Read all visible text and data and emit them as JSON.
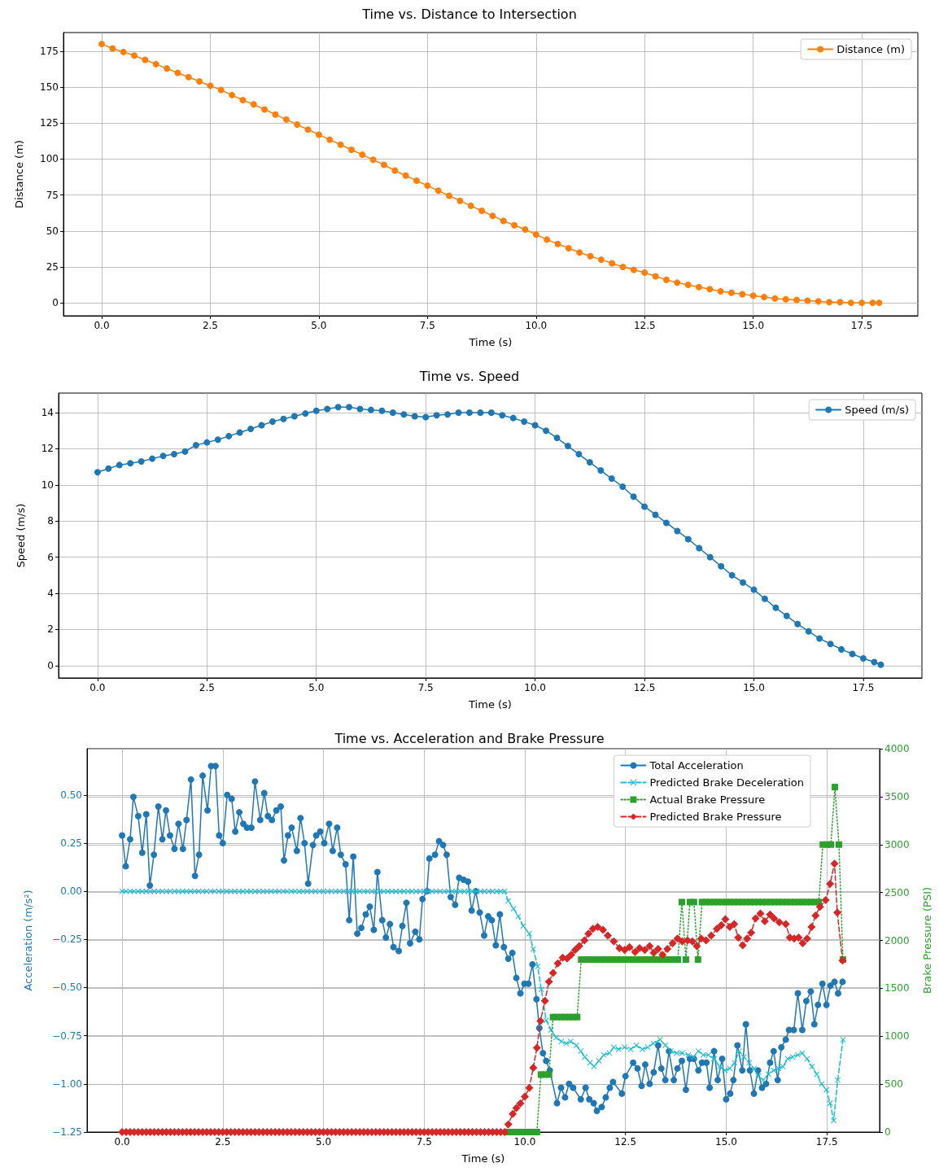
{
  "chart_data": [
    {
      "type": "line",
      "title": "Time vs. Distance to Intersection",
      "xlabel": "Time (s)",
      "ylabel": "Distance (m)",
      "marker": "circle",
      "line_style": "solid",
      "grid": true,
      "legend": "top right",
      "xlim": [
        -0.88,
        18.79
      ],
      "ylim": [
        -9,
        188
      ],
      "xticks": [
        {
          "value": 0,
          "label": "0.0"
        },
        2.5,
        {
          "value": 5,
          "label": "5.0"
        },
        7.5,
        {
          "value": 10,
          "label": "10.0"
        },
        12.5,
        {
          "value": 15,
          "label": "15.0"
        },
        17.5
      ],
      "yticks": [
        0,
        25,
        50,
        75,
        100,
        125,
        150,
        175
      ],
      "series": [
        {
          "name": "Distance (m)",
          "color": "#ff7f0e",
          "x": [
            0,
            0.25,
            0.5,
            0.75,
            1,
            1.25,
            1.5,
            1.75,
            2,
            2.25,
            2.5,
            2.75,
            3,
            3.25,
            3.5,
            3.75,
            4,
            4.25,
            4.5,
            4.75,
            5,
            5.25,
            5.5,
            5.75,
            6,
            6.25,
            6.5,
            6.75,
            7,
            7.25,
            7.5,
            7.75,
            8,
            8.25,
            8.5,
            8.75,
            9,
            9.25,
            9.5,
            9.75,
            10,
            10.25,
            10.5,
            10.75,
            11,
            11.25,
            11.5,
            11.75,
            12,
            12.25,
            12.5,
            12.75,
            13,
            13.25,
            13.5,
            13.75,
            14,
            14.25,
            14.5,
            14.75,
            15,
            15.25,
            15.5,
            15.75,
            16,
            16.25,
            16.5,
            16.75,
            17,
            17.25,
            17.5,
            17.75,
            17.9
          ],
          "values": [
            180,
            177,
            174.5,
            172,
            169,
            166,
            163,
            160,
            157,
            154,
            151,
            148,
            144.5,
            141,
            138,
            134.5,
            131,
            127.5,
            124,
            120.5,
            117,
            113.5,
            110,
            106.5,
            103,
            99.5,
            96,
            92,
            88.5,
            85,
            81.5,
            78,
            74.5,
            71,
            67.5,
            64,
            60.5,
            57,
            54,
            51,
            47.5,
            44,
            41,
            38,
            35,
            32.5,
            30,
            27.5,
            25,
            23,
            21,
            18.5,
            16,
            14,
            12.5,
            11,
            9.5,
            8,
            7,
            6,
            5,
            4,
            3,
            2.5,
            2,
            1.5,
            1,
            0.5,
            0.5,
            0,
            0,
            0,
            0
          ]
        }
      ]
    },
    {
      "type": "line",
      "title": "Time vs. Speed",
      "xlabel": "Time (s)",
      "ylabel": "Speed (m/s)",
      "marker": "circle",
      "line_style": "solid",
      "grid": true,
      "legend": "top right",
      "xlim": [
        -0.89,
        18.84
      ],
      "ylim": [
        -0.68,
        15.08
      ],
      "xticks": [
        {
          "value": 0,
          "label": "0.0"
        },
        2.5,
        {
          "value": 5,
          "label": "5.0"
        },
        7.5,
        {
          "value": 10,
          "label": "10.0"
        },
        12.5,
        {
          "value": 15,
          "label": "15.0"
        },
        17.5
      ],
      "yticks": [
        0,
        2,
        4,
        6,
        8,
        10,
        12,
        14
      ],
      "series": [
        {
          "name": "Speed (m/s)",
          "color": "#1f77b4",
          "x": [
            0,
            0.25,
            0.5,
            0.75,
            1,
            1.25,
            1.5,
            1.75,
            2,
            2.25,
            2.5,
            2.75,
            3,
            3.25,
            3.5,
            3.75,
            4,
            4.25,
            4.5,
            4.75,
            5,
            5.25,
            5.5,
            5.75,
            6,
            6.25,
            6.5,
            6.75,
            7,
            7.25,
            7.5,
            7.75,
            8,
            8.25,
            8.5,
            8.75,
            9,
            9.25,
            9.5,
            9.75,
            10,
            10.25,
            10.5,
            10.75,
            11,
            11.25,
            11.5,
            11.75,
            12,
            12.25,
            12.5,
            12.75,
            13,
            13.25,
            13.5,
            13.75,
            14,
            14.25,
            14.5,
            14.75,
            15,
            15.25,
            15.5,
            15.75,
            16,
            16.25,
            16.5,
            16.75,
            17,
            17.25,
            17.5,
            17.75,
            17.9
          ],
          "values": [
            10.7,
            10.9,
            11.1,
            11.2,
            11.3,
            11.45,
            11.6,
            11.7,
            11.85,
            12.2,
            12.35,
            12.5,
            12.7,
            12.9,
            13.1,
            13.3,
            13.5,
            13.65,
            13.8,
            13.95,
            14.1,
            14.2,
            14.3,
            14.3,
            14.2,
            14.15,
            14.1,
            14.0,
            13.9,
            13.8,
            13.75,
            13.85,
            13.9,
            14.0,
            14.0,
            14.0,
            14.0,
            13.85,
            13.7,
            13.5,
            13.3,
            13.0,
            12.6,
            12.15,
            11.7,
            11.25,
            10.8,
            10.35,
            9.9,
            9.35,
            8.8,
            8.35,
            7.9,
            7.45,
            7.0,
            6.5,
            6.0,
            5.5,
            5.0,
            4.6,
            4.2,
            3.7,
            3.2,
            2.75,
            2.3,
            1.9,
            1.5,
            1.2,
            0.9,
            0.65,
            0.4,
            0.2,
            0.05
          ]
        }
      ]
    },
    {
      "type": "line",
      "title": "Time vs. Acceleration and Brake Pressure",
      "xlabel": "Time (s)",
      "ylabel": "Acceleration (m/s²)",
      "y2label": "Brake Pressure (PSI)",
      "grid": true,
      "legend": "top right",
      "xlim": [
        -0.87,
        18.81
      ],
      "ylim": [
        -1.25,
        0.74
      ],
      "y2lim": [
        0,
        4000
      ],
      "xticks": [
        {
          "value": 0,
          "label": "0.0"
        },
        2.5,
        {
          "value": 5,
          "label": "5.0"
        },
        7.5,
        {
          "value": 10,
          "label": "10.0"
        },
        12.5,
        {
          "value": 15,
          "label": "15.0"
        },
        17.5
      ],
      "yticks": [
        {
          "value": -1.25,
          "label": "−1.25"
        },
        {
          "value": -1,
          "label": "−1.00"
        },
        {
          "value": -0.75,
          "label": "−0.75"
        },
        {
          "value": -0.5,
          "label": "−0.50"
        },
        {
          "value": -0.25,
          "label": "−0.25"
        },
        {
          "value": 0,
          "label": "0.00"
        },
        0.25,
        {
          "value": 0.5,
          "label": "0.50"
        }
      ],
      "y2ticks": [
        0,
        500,
        1000,
        1500,
        2000,
        2500,
        3000,
        3500,
        4000
      ],
      "series": [
        {
          "name": "Total Acceleration",
          "color": "#1f77b4",
          "marker": "circle",
          "line_style": "solid",
          "x": [
            0,
            0.09,
            0.2,
            0.28,
            0.4,
            0.5,
            0.6,
            0.69,
            0.79,
            0.9,
            1.0,
            1.09,
            1.19,
            1.3,
            1.4,
            1.51,
            1.6,
            1.71,
            1.81,
            1.91,
            2.0,
            2.12,
            2.21,
            2.32,
            2.41,
            2.5,
            2.61,
            2.72,
            2.81,
            2.91,
            3.01,
            3.1,
            3.21,
            3.3,
            3.43,
            3.53,
            3.62,
            3.72,
            3.83,
            3.94,
            4.02,
            4.12,
            4.21,
            4.34,
            4.43,
            4.53,
            4.62,
            4.74,
            4.82,
            4.92,
            5.02,
            5.14,
            5.23,
            5.34,
            5.43,
            5.55,
            5.64,
            5.74,
            5.84,
            5.94,
            6.05,
            6.15,
            6.25,
            6.34,
            6.46,
            6.55,
            6.65,
            6.74,
            6.87,
            6.96,
            7.06,
            7.15,
            7.28,
            7.38,
            7.46,
            7.57,
            7.63,
            7.77,
            7.87,
            7.97,
            8.06,
            8.16,
            8.27,
            8.37,
            8.48,
            8.59,
            8.68,
            8.78,
            8.88,
            8.99,
            9.09,
            9.18,
            9.28,
            9.38,
            9.48,
            9.59,
            9.69,
            9.79,
            9.89,
            9.99,
            10.09,
            10.19,
            10.29,
            10.36,
            10.45,
            10.53,
            10.62,
            10.8,
            10.9,
            11.0,
            11.1,
            11.2,
            11.39,
            11.51,
            11.6,
            11.71,
            11.79,
            11.91,
            12.01,
            12.11,
            12.19,
            12.41,
            12.5,
            12.69,
            12.8,
            12.9,
            12.99,
            13.1,
            13.2,
            13.31,
            13.39,
            13.49,
            13.58,
            13.7,
            13.79,
            13.9,
            14.0,
            14.1,
            14.2,
            14.31,
            14.4,
            14.51,
            14.59,
            14.7,
            14.79,
            14.9,
            15.0,
            15.1,
            15.18,
            15.28,
            15.4,
            15.49,
            15.59,
            15.69,
            15.79,
            15.89,
            15.99,
            16.09,
            16.18,
            16.28,
            16.37,
            16.48,
            16.56,
            16.68,
            16.78,
            16.89,
            16.99,
            17.1,
            17.19,
            17.28,
            17.39,
            17.49,
            17.59,
            17.69,
            17.78,
            17.89
          ],
          "values": [
            0.29,
            0.13,
            0.27,
            0.49,
            0.39,
            0.2,
            0.4,
            0.03,
            0.19,
            0.44,
            0.27,
            0.42,
            0.29,
            0.22,
            0.35,
            0.22,
            0.37,
            0.58,
            0.08,
            0.19,
            0.6,
            0.42,
            0.65,
            0.65,
            0.29,
            0.25,
            0.5,
            0.48,
            0.31,
            0.41,
            0.35,
            0.33,
            0.33,
            0.57,
            0.37,
            0.51,
            0.39,
            0.37,
            0.42,
            0.44,
            0.16,
            0.29,
            0.33,
            0.21,
            0.38,
            0.25,
            0.04,
            0.24,
            0.29,
            0.31,
            0.25,
            0.35,
            0.21,
            0.33,
            0.19,
            0.14,
            -0.15,
            0.18,
            -0.22,
            -0.19,
            -0.12,
            -0.08,
            -0.2,
            0.1,
            -0.15,
            -0.24,
            -0.17,
            -0.29,
            -0.31,
            -0.18,
            -0.06,
            -0.27,
            -0.21,
            -0.25,
            -0.04,
            0.0,
            0.17,
            0.19,
            0.26,
            0.24,
            0.19,
            -0.03,
            -0.07,
            0.07,
            0.06,
            0.05,
            -0.1,
            0.0,
            -0.11,
            -0.23,
            -0.13,
            -0.15,
            -0.28,
            -0.12,
            -0.29,
            -0.35,
            -0.32,
            -0.45,
            -0.53,
            -0.48,
            -0.48,
            -0.38,
            -0.56,
            -0.71,
            -0.84,
            -0.88,
            -0.93,
            -1.1,
            -1.02,
            -1.07,
            -1.0,
            -1.02,
            -1.08,
            -1.02,
            -1.08,
            -1.1,
            -1.14,
            -1.12,
            -1.07,
            -1.02,
            -0.99,
            -1.05,
            -0.96,
            -0.89,
            -0.92,
            -1.01,
            -0.9,
            -1.0,
            -0.94,
            -0.8,
            -0.92,
            -0.98,
            -0.83,
            -0.98,
            -0.92,
            -0.88,
            -1.03,
            -0.87,
            -0.87,
            -0.93,
            -0.89,
            -0.89,
            -1.02,
            -0.83,
            -0.98,
            -0.87,
            -1.08,
            -1.05,
            -0.98,
            -0.8,
            -0.93,
            -0.69,
            -0.93,
            -1.05,
            -0.93,
            -1.02,
            -1.0,
            -0.89,
            -0.83,
            -0.98,
            -0.81,
            -0.77,
            -0.72,
            -0.72,
            -0.53,
            -0.72,
            -0.57,
            -0.52,
            -0.69,
            -0.59,
            -0.48,
            -0.59,
            -0.49,
            -0.47,
            -0.53,
            -0.47
          ]
        },
        {
          "name": "Predicted Brake Deceleration",
          "color": "#17becf",
          "marker": "cross",
          "line_style": "dashed",
          "x": [
            0,
            0.1,
            0.2,
            0.3,
            0.4,
            0.5,
            0.6,
            0.7,
            0.8,
            0.9,
            1,
            1.1,
            1.2,
            1.3,
            1.4,
            1.5,
            1.6,
            1.7,
            1.8,
            1.9,
            2,
            2.1,
            2.2,
            2.3,
            2.4,
            2.5,
            2.6,
            2.7,
            2.8,
            2.9,
            3,
            3.1,
            3.2,
            3.3,
            3.4,
            3.5,
            3.6,
            3.7,
            3.8,
            3.9,
            4,
            4.1,
            4.2,
            4.3,
            4.4,
            4.5,
            4.6,
            4.7,
            4.8,
            4.9,
            5,
            5.1,
            5.2,
            5.3,
            5.4,
            5.5,
            5.6,
            5.7,
            5.8,
            5.9,
            6,
            6.1,
            6.2,
            6.3,
            6.4,
            6.5,
            6.6,
            6.7,
            6.8,
            6.9,
            7,
            7.1,
            7.2,
            7.3,
            7.4,
            7.5,
            7.6,
            7.7,
            7.8,
            7.9,
            8,
            8.1,
            8.2,
            8.3,
            8.4,
            8.5,
            8.6,
            8.7,
            8.8,
            8.9,
            9,
            9.1,
            9.2,
            9.3,
            9.4,
            9.5,
            9.59,
            9.72,
            9.84,
            9.96,
            10.11,
            10.21,
            10.32,
            10.41,
            10.53,
            10.65,
            10.78,
            10.91,
            11.03,
            11.14,
            11.28,
            11.39,
            11.49,
            11.62,
            11.72,
            11.84,
            11.96,
            12.1,
            12.21,
            12.33,
            12.48,
            12.63,
            12.77,
            12.92,
            13.05,
            13.19,
            13.36,
            13.49,
            13.63,
            13.77,
            13.91,
            14.06,
            14.19,
            14.31,
            14.43,
            14.56,
            14.7,
            14.84,
            14.97,
            15.09,
            15.21,
            15.32,
            15.44,
            15.57,
            15.69,
            15.8,
            15.92,
            16.05,
            16.18,
            16.3,
            16.41,
            16.53,
            16.65,
            16.78,
            16.89,
            17.01,
            17.13,
            17.25,
            17.37,
            17.49,
            17.58,
            17.67,
            17.77,
            17.9
          ],
          "values": [
            0,
            0,
            0,
            0,
            0,
            0,
            0,
            0,
            0,
            0,
            0,
            0,
            0,
            0,
            0,
            0,
            0,
            0,
            0,
            0,
            0,
            0,
            0,
            0,
            0,
            0,
            0,
            0,
            0,
            0,
            0,
            0,
            0,
            0,
            0,
            0,
            0,
            0,
            0,
            0,
            0,
            0,
            0,
            0,
            0,
            0,
            0,
            0,
            0,
            0,
            0,
            0,
            0,
            0,
            0,
            0,
            0,
            0,
            0,
            0,
            0,
            0,
            0,
            0,
            0,
            0,
            0,
            0,
            0,
            0,
            0,
            0,
            0,
            0,
            0,
            0,
            0,
            0,
            0,
            0,
            0,
            0,
            0,
            0,
            0,
            0,
            0,
            0,
            0,
            0,
            0,
            0,
            0,
            0,
            0,
            0,
            -0.05,
            -0.09,
            -0.13,
            -0.18,
            -0.22,
            -0.3,
            -0.39,
            -0.51,
            -0.67,
            -0.72,
            -0.76,
            -0.78,
            -0.79,
            -0.78,
            -0.8,
            -0.83,
            -0.86,
            -0.89,
            -0.91,
            -0.88,
            -0.85,
            -0.84,
            -0.81,
            -0.82,
            -0.81,
            -0.82,
            -0.8,
            -0.82,
            -0.81,
            -0.79,
            -0.77,
            -0.8,
            -0.83,
            -0.84,
            -0.84,
            -0.85,
            -0.86,
            -0.83,
            -0.85,
            -0.85,
            -0.87,
            -0.91,
            -0.93,
            -0.92,
            -0.89,
            -0.83,
            -0.86,
            -0.89,
            -0.92,
            -0.96,
            -0.98,
            -0.95,
            -0.93,
            -0.92,
            -0.91,
            -0.87,
            -0.86,
            -0.85,
            -0.84,
            -0.87,
            -0.91,
            -0.95,
            -1.0,
            -1.03,
            -1.1,
            -1.19,
            -0.98,
            -0.77
          ]
        },
        {
          "name": "Actual Brake Pressure",
          "color": "#2ca02c",
          "marker": "square",
          "line_style": "dotted",
          "axis": "y2",
          "x": [
            9.6,
            9.7,
            9.8,
            9.9,
            10,
            10.1,
            10.2,
            10.3,
            10.4,
            10.5,
            10.6,
            10.7,
            10.8,
            10.9,
            11,
            11.1,
            11.2,
            11.3,
            11.4,
            11.5,
            11.6,
            11.7,
            11.8,
            11.9,
            12,
            12.1,
            12.2,
            12.3,
            12.4,
            12.5,
            12.6,
            12.7,
            12.8,
            12.9,
            13,
            13.1,
            13.2,
            13.3,
            13.4,
            13.5,
            13.6,
            13.7,
            13.8,
            13.9,
            14,
            14.1,
            14.2,
            14.3,
            14.4,
            14.5,
            14.6,
            14.7,
            14.8,
            14.9,
            15,
            15.1,
            15.2,
            15.3,
            15.4,
            15.5,
            15.6,
            15.7,
            15.8,
            15.9,
            16,
            16.1,
            16.2,
            16.3,
            16.4,
            16.5,
            16.6,
            16.7,
            16.8,
            16.9,
            17,
            17.1,
            17.2,
            17.3,
            17.4,
            17.5,
            17.6,
            17.7,
            17.8,
            17.9
          ],
          "values": [
            0,
            0,
            0,
            0,
            0,
            0,
            0,
            0,
            600,
            600,
            600,
            1200,
            1200,
            1200,
            1200,
            1200,
            1200,
            1200,
            1800,
            1800,
            1800,
            1800,
            1800,
            1800,
            1800,
            1800,
            1800,
            1800,
            1800,
            1800,
            1800,
            1800,
            1800,
            1800,
            1800,
            1800,
            1800,
            1800,
            1800,
            1800,
            1800,
            1800,
            1800,
            2400,
            1800,
            2400,
            2400,
            1800,
            2400,
            2400,
            2400,
            2400,
            2400,
            2400,
            2400,
            2400,
            2400,
            2400,
            2400,
            2400,
            2400,
            2400,
            2400,
            2400,
            2400,
            2400,
            2400,
            2400,
            2400,
            2400,
            2400,
            2400,
            2400,
            2400,
            2400,
            2400,
            2400,
            2400,
            3000,
            3000,
            3000,
            3600,
            3000,
            1800
          ]
        },
        {
          "name": "Predicted Brake Pressure",
          "color": "#d62728",
          "marker": "diamond",
          "line_style": "dashed",
          "axis": "y2",
          "x": [
            0,
            0.1,
            0.2,
            0.3,
            0.4,
            0.5,
            0.6,
            0.7,
            0.8,
            0.9,
            1,
            1.1,
            1.2,
            1.3,
            1.4,
            1.5,
            1.6,
            1.7,
            1.8,
            1.9,
            2,
            2.1,
            2.2,
            2.3,
            2.4,
            2.5,
            2.6,
            2.7,
            2.8,
            2.9,
            3,
            3.1,
            3.2,
            3.3,
            3.4,
            3.5,
            3.6,
            3.7,
            3.8,
            3.9,
            4,
            4.1,
            4.2,
            4.3,
            4.4,
            4.5,
            4.6,
            4.7,
            4.8,
            4.9,
            5,
            5.1,
            5.2,
            5.3,
            5.4,
            5.5,
            5.6,
            5.7,
            5.8,
            5.9,
            6,
            6.1,
            6.2,
            6.3,
            6.4,
            6.5,
            6.6,
            6.7,
            6.8,
            6.9,
            7,
            7.1,
            7.2,
            7.3,
            7.4,
            7.5,
            7.6,
            7.7,
            7.8,
            7.9,
            8,
            8.1,
            8.2,
            8.3,
            8.4,
            8.5,
            8.6,
            8.7,
            8.8,
            8.9,
            9,
            9.1,
            9.2,
            9.3,
            9.4,
            9.5,
            9.59,
            9.7,
            9.79,
            9.89,
            10.0,
            10.11,
            10.21,
            10.3,
            10.39,
            10.5,
            10.6,
            10.7,
            10.82,
            10.94,
            11.05,
            11.15,
            11.25,
            11.35,
            11.48,
            11.58,
            11.69,
            11.81,
            11.94,
            12.06,
            12.21,
            12.35,
            12.48,
            12.6,
            12.74,
            12.85,
            12.98,
            13.1,
            13.2,
            13.31,
            13.42,
            13.54,
            13.67,
            13.79,
            13.91,
            14.04,
            14.16,
            14.27,
            14.38,
            14.5,
            14.63,
            14.77,
            14.88,
            14.98,
            15.09,
            15.2,
            15.3,
            15.41,
            15.52,
            15.62,
            15.73,
            15.85,
            15.96,
            16.09,
            16.19,
            16.32,
            16.48,
            16.58,
            16.69,
            16.8,
            16.9,
            17.01,
            17.12,
            17.22,
            17.33,
            17.47,
            17.58,
            17.69,
            17.76,
            17.89
          ],
          "values": [
            0,
            0,
            0,
            0,
            0,
            0,
            0,
            0,
            0,
            0,
            0,
            0,
            0,
            0,
            0,
            0,
            0,
            0,
            0,
            0,
            0,
            0,
            0,
            0,
            0,
            0,
            0,
            0,
            0,
            0,
            0,
            0,
            0,
            0,
            0,
            0,
            0,
            0,
            0,
            0,
            0,
            0,
            0,
            0,
            0,
            0,
            0,
            0,
            0,
            0,
            0,
            0,
            0,
            0,
            0,
            0,
            0,
            0,
            0,
            0,
            0,
            0,
            0,
            0,
            0,
            0,
            0,
            0,
            0,
            0,
            0,
            0,
            0,
            0,
            0,
            0,
            0,
            0,
            0,
            0,
            0,
            0,
            0,
            0,
            0,
            0,
            0,
            0,
            0,
            0,
            0,
            0,
            0,
            0,
            0,
            0,
            80,
            190,
            250,
            300,
            370,
            460,
            670,
            880,
            1160,
            1370,
            1570,
            1660,
            1760,
            1820,
            1810,
            1850,
            1900,
            1940,
            2000,
            2070,
            2120,
            2140,
            2110,
            2050,
            1990,
            1920,
            1900,
            1930,
            1880,
            1920,
            1900,
            1940,
            1870,
            1910,
            1850,
            1910,
            1970,
            2020,
            1990,
            2000,
            1990,
            1940,
            2020,
            2000,
            2050,
            2120,
            2160,
            2220,
            2140,
            2170,
            2030,
            1950,
            2020,
            2080,
            2230,
            2280,
            2200,
            2270,
            2230,
            2190,
            2170,
            2030,
            2020,
            2030,
            1970,
            2020,
            2140,
            2260,
            2350,
            2420,
            2590,
            2800,
            2290,
            1790
          ]
        }
      ]
    }
  ]
}
